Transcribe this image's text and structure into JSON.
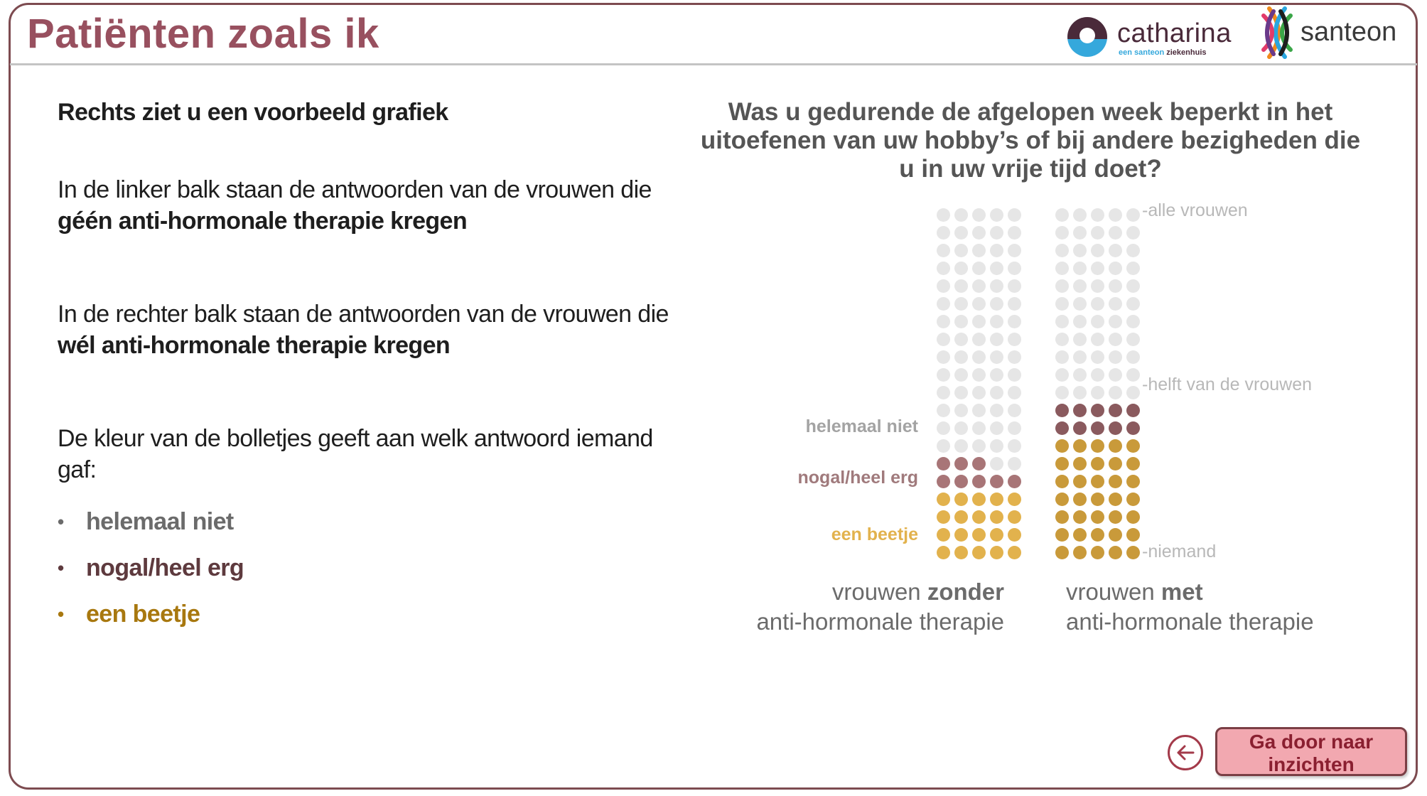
{
  "header": {
    "title": "Patiënten zoals ik",
    "logos": {
      "catharina": {
        "name": "catharina",
        "subtitle_a": "een santeon",
        "subtitle_b": "ziekenhuis"
      },
      "santeon": {
        "name": "santeon"
      }
    }
  },
  "intro": {
    "heading": "Rechts ziet u een voorbeeld grafiek",
    "p1_plain": "In de linker balk staan de antwoorden van de vrouwen die ",
    "p1_bold": "géén anti-hormonale therapie kregen",
    "p2_plain": "In de rechter balk staan de antwoorden van de vrouwen die ",
    "p2_bold": "wél anti-hormonale therapie kregen",
    "p3": "De kleur van de bolletjes geeft aan welk antwoord iemand gaf:",
    "legend": [
      {
        "label": "helemaal niet",
        "color": "#6b6b6b",
        "bullet": "•"
      },
      {
        "label": "nogal/heel erg",
        "color": "#5e3a3e",
        "bullet": "•"
      },
      {
        "label": "een beetje",
        "color": "#a8780f",
        "bullet": "•"
      }
    ]
  },
  "chart": {
    "title": "Was u gedurende de afgelopen week beperkt in het uitoefenen van uw hobby’s of bij andere bezigheden die u in uw vrije tijd doet?",
    "category_labels": [
      {
        "label": "helemaal niet",
        "color": "#a3a3a3"
      },
      {
        "label": "nogal/heel erg",
        "color": "#a07a7c"
      },
      {
        "label": "een beetje",
        "color": "#e2b24d"
      }
    ],
    "axis_labels": {
      "top": "-alle vrouwen",
      "middle": "-helft van de vrouwen",
      "bottom": "-niemand"
    },
    "captions": {
      "left_plain": "vrouwen ",
      "left_bold": "zonder",
      "left_line2": "anti-hormonale therapie",
      "right_plain": "vrouwen ",
      "right_bold": "met",
      "right_line2": "anti-hormonale therapie"
    }
  },
  "chart_data": {
    "type": "waffle",
    "title": "Was u gedurende de afgelopen week beperkt in het uitoefenen van uw hobby’s of bij andere bezigheden die u in uw vrije tijd doet?",
    "grid": {
      "rows": 20,
      "cols": 5,
      "total": 100
    },
    "categories": [
      "vrouwen zonder anti-hormonale therapie",
      "vrouwen met anti-hormonale therapie"
    ],
    "series": [
      {
        "name": "een beetje",
        "values": [
          20,
          35
        ],
        "colors": [
          "#e2b24d",
          "#c99a3a"
        ]
      },
      {
        "name": "nogal/heel erg",
        "values": [
          8,
          10
        ],
        "colors": [
          "#a87577",
          "#8a5a5e"
        ]
      },
      {
        "name": "helemaal niet",
        "values": [
          72,
          55
        ],
        "colors": [
          "#e6e6e6",
          "#e6e6e6"
        ]
      }
    ],
    "y_labels": [
      "-niemand",
      "-helft van de vrouwen",
      "-alle vrouwen"
    ],
    "ylim": [
      0,
      100
    ],
    "legend_position": "left"
  },
  "navigation": {
    "back_icon": "arrow-left-circle-icon",
    "next_label_line1": "Ga door naar",
    "next_label_line2": "inzichten"
  },
  "colors": {
    "title": "#98505f",
    "frame": "#7d4b50",
    "button_bg": "#f2a8b0",
    "button_text": "#8a1f30"
  }
}
